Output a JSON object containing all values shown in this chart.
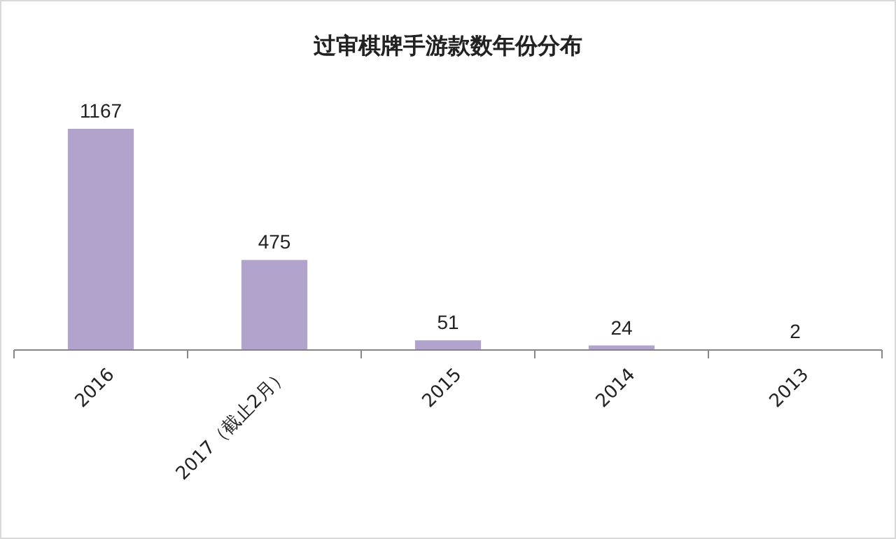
{
  "chart_data": {
    "type": "bar",
    "title": "过审棋牌手游款数年份分布",
    "categories": [
      "2016",
      "2017（截止2月）",
      "2015",
      "2014",
      "2013"
    ],
    "values": [
      1167,
      475,
      51,
      24,
      2
    ],
    "color": "#b1a3cc",
    "data_labels": true
  }
}
